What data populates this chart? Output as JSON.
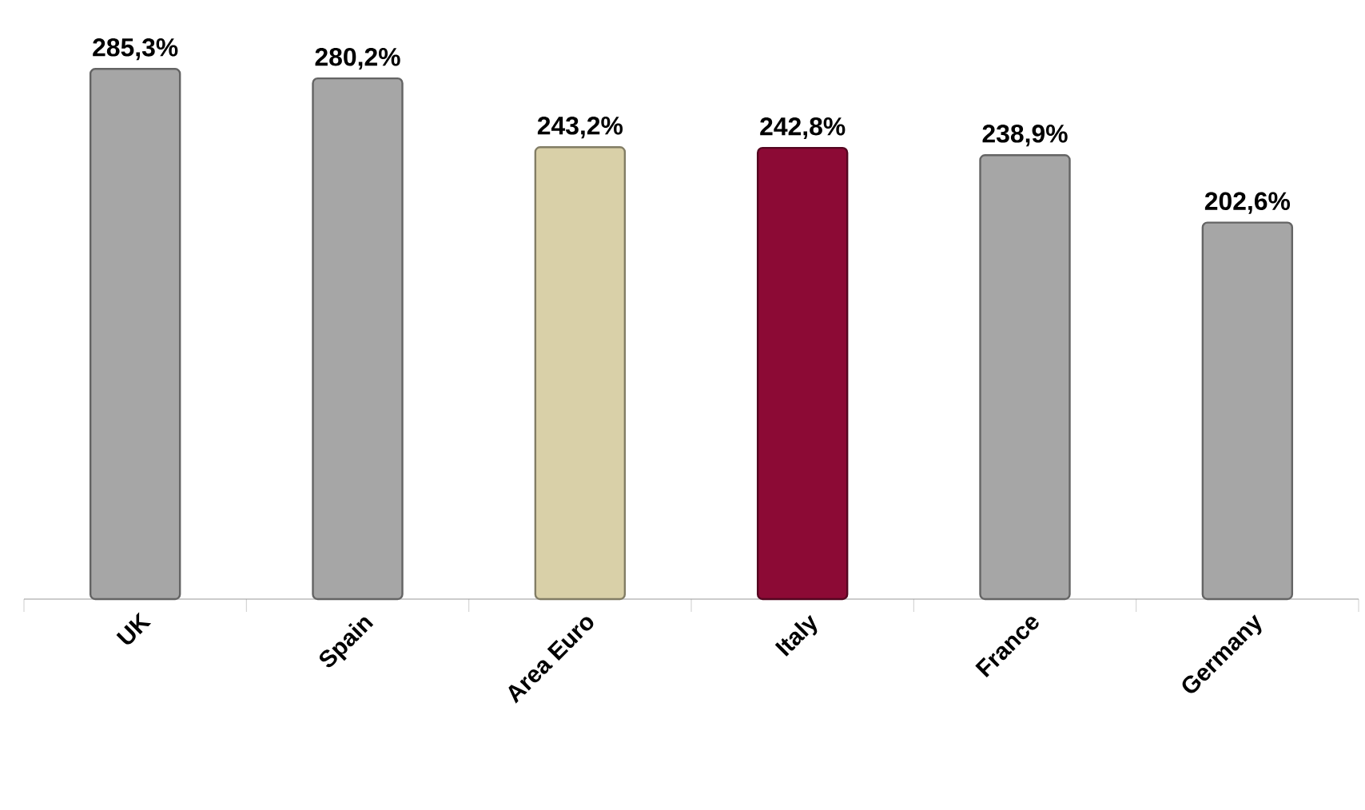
{
  "chart_data": {
    "type": "bar",
    "categories": [
      "UK",
      "Spain",
      "Area Euro",
      "Italy",
      "France",
      "Germany"
    ],
    "values": [
      285.3,
      280.2,
      243.2,
      242.8,
      238.9,
      202.6
    ],
    "colors": [
      "#a6a6a6",
      "#a6a6a6",
      "#d9d0a8",
      "#8c0a35",
      "#a6a6a6",
      "#a6a6a6"
    ],
    "value_labels": [
      "285,3%",
      "280,2%",
      "243,2%",
      "242,8%",
      "238,9%",
      "202,6%"
    ]
  }
}
